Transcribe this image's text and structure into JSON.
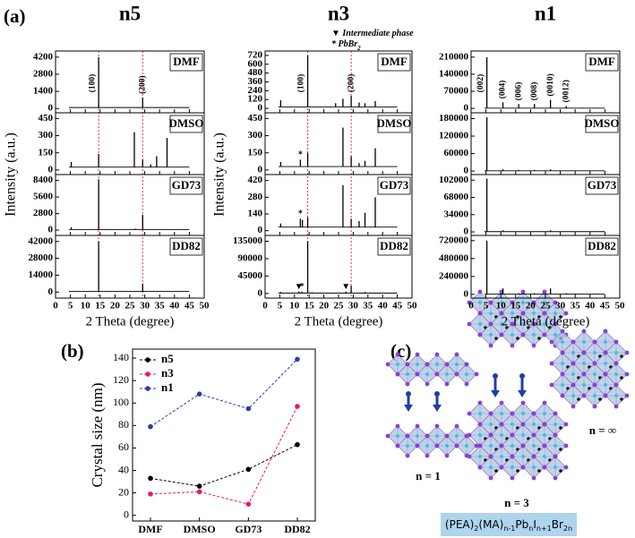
{
  "panel_labels": [
    "(a)",
    "(b)",
    "(c)"
  ],
  "chart_data": [
    {
      "type": "xrd",
      "title": "n5",
      "xlabel": "2 Theta (degree)",
      "ylabel": "Intensity (a.u.)",
      "xlim": [
        0,
        50
      ],
      "xticks": [
        0,
        5,
        10,
        15,
        20,
        25,
        30,
        35,
        40,
        45,
        50
      ],
      "ref_lines": [
        14.5,
        29.3
      ],
      "ref_color": "#e8313f",
      "color": "#000000",
      "panels": [
        {
          "label": "DMF",
          "ylim": [
            -350,
            4700
          ],
          "yticks": [
            0,
            1400,
            2800,
            4200
          ],
          "baseline": 80,
          "xrange": [
            4.5,
            45
          ],
          "peaks": {
            "x": [
              14.5,
              29.3
            ],
            "values": [
              4200,
              900
            ],
            "labels": [
              "(100)",
              "(200)"
            ]
          }
        },
        {
          "label": "DMSO",
          "ylim": [
            -40,
            500
          ],
          "yticks": [
            0,
            150,
            300,
            450
          ],
          "baseline": 25,
          "xrange": [
            4.5,
            45
          ],
          "peaks": {
            "x": [
              5.3,
              14.5,
              26.5,
              29.3,
              32,
              34,
              37.5
            ],
            "values": [
              70,
              140,
              330,
              90,
              50,
              120,
              280
            ]
          }
        },
        {
          "label": "GD73",
          "ylim": [
            -900,
            9400
          ],
          "yticks": [
            0,
            2800,
            5600,
            8400
          ],
          "baseline": 100,
          "xrange": [
            4.5,
            45
          ],
          "peaks": {
            "x": [
              5.3,
              14.5,
              27,
              29.3
            ],
            "values": [
              500,
              8600,
              250,
              2600
            ]
          }
        },
        {
          "label": "DD82",
          "ylim": [
            -5000,
            47000
          ],
          "yticks": [
            0,
            14000,
            28000,
            42000
          ],
          "baseline": 500,
          "xrange": [
            4.5,
            45
          ],
          "peaks": {
            "x": [
              14.5,
              29.3
            ],
            "values": [
              42000,
              7000
            ]
          }
        }
      ]
    },
    {
      "type": "xrd",
      "title": "n3",
      "xlabel": "2 Theta (degree)",
      "ylabel": "Intensity (a.u.)",
      "xlim": [
        0,
        50
      ],
      "xticks": [
        0,
        5,
        10,
        15,
        20,
        25,
        30,
        35,
        40,
        45,
        50
      ],
      "ref_lines": [
        14.5,
        29.3
      ],
      "ref_color": "#e8313f",
      "color": "#000000",
      "notes": [
        {
          "text": "▼ Intermediate phase"
        },
        {
          "text": "* PbBr",
          "sub": "2"
        }
      ],
      "panels": [
        {
          "label": "DMF",
          "ylim": [
            -60,
            780
          ],
          "yticks": [
            0,
            120,
            240,
            360,
            480,
            600,
            720
          ],
          "baseline": 20,
          "xrange": [
            4.5,
            45
          ],
          "peaks": {
            "x": [
              5.3,
              14.5,
              24,
              26.5,
              29.3,
              32,
              34,
              37.5
            ],
            "values": [
              110,
              720,
              70,
              130,
              170,
              80,
              70,
              100
            ],
            "labels": [
              null,
              "(100)",
              null,
              null,
              "(200)",
              null,
              null,
              null
            ]
          }
        },
        {
          "label": "DMSO",
          "ylim": [
            -40,
            500
          ],
          "yticks": [
            0,
            150,
            300,
            450
          ],
          "baseline": 30,
          "xrange": [
            4.5,
            45
          ],
          "peaks": {
            "x": [
              5.3,
              12,
              14.5,
              26.5,
              29.3,
              32,
              34,
              37.5
            ],
            "values": [
              70,
              90,
              150,
              370,
              120,
              60,
              80,
              190
            ],
            "markers": [
              null,
              "*",
              null,
              null,
              null,
              null,
              null,
              null
            ]
          }
        },
        {
          "label": "GD73",
          "ylim": [
            -40,
            470
          ],
          "yticks": [
            0,
            140,
            280,
            420
          ],
          "baseline": 30,
          "xrange": [
            4.5,
            45
          ],
          "peaks": {
            "x": [
              5.3,
              12,
              12.7,
              14.5,
              26.5,
              29.3,
              32,
              34,
              37.5
            ],
            "values": [
              60,
              100,
              90,
              110,
              380,
              100,
              80,
              150,
              280
            ],
            "markers": [
              null,
              "*",
              null,
              null,
              null,
              null,
              null,
              null,
              null
            ]
          }
        },
        {
          "label": "DD82",
          "ylim": [
            -12000,
            150000
          ],
          "yticks": [
            0,
            45000,
            90000,
            135000
          ],
          "baseline": 1000,
          "xrange": [
            4.5,
            45
          ],
          "peaks": {
            "x": [
              5.3,
              11.5,
              12.5,
              14.5,
              16,
              27.5,
              29.3,
              34
            ],
            "values": [
              4000,
              5000,
              5000,
              135000,
              3000,
              5000,
              20000,
              4000
            ],
            "markers": [
              null,
              "▼",
              "*",
              null,
              null,
              "▼",
              null,
              null
            ]
          }
        }
      ]
    },
    {
      "type": "xrd",
      "title": "n1",
      "xlim": [
        0,
        50
      ],
      "xticks": [
        0,
        5,
        10,
        15,
        20,
        25,
        30,
        35,
        40,
        45,
        50
      ],
      "xlabel": "2 Theta (degree)",
      "color": "#000000",
      "panels": [
        {
          "label": "DMF",
          "ylim": [
            -18000,
            235000
          ],
          "yticks": [
            0,
            70000,
            140000,
            210000
          ],
          "baseline": 1000,
          "xrange": [
            4.5,
            45
          ],
          "peaks": {
            "x": [
              5.3,
              10.7,
              16,
              21.3,
              26.7,
              32,
              37.5
            ],
            "values": [
              210000,
              25000,
              18000,
              18000,
              35000,
              10000,
              3000
            ],
            "labels": [
              "(002)",
              "(004)",
              "(006)",
              "(008)",
              "(0010)",
              "(0012)",
              null
            ]
          }
        },
        {
          "label": "DMSO",
          "ylim": [
            -12000,
            200000
          ],
          "yticks": [
            0,
            60000,
            120000,
            180000
          ],
          "baseline": 1000,
          "xrange": [
            4.5,
            45
          ],
          "peaks": {
            "x": [
              5.3,
              10.7,
              16,
              21.3,
              26.7
            ],
            "values": [
              185000,
              6000,
              4000,
              4000,
              6000
            ]
          }
        },
        {
          "label": "GD73",
          "ylim": [
            -7000,
            113000
          ],
          "yticks": [
            0,
            34000,
            68000,
            102000
          ],
          "baseline": 500,
          "xrange": [
            4.5,
            45
          ],
          "peaks": {
            "x": [
              5.3,
              10.7,
              26.7
            ],
            "values": [
              105000,
              3000,
              3000
            ]
          }
        },
        {
          "label": "DD82",
          "ylim": [
            -50000,
            790000
          ],
          "yticks": [
            0,
            240000,
            480000,
            720000
          ],
          "baseline": 3000,
          "xrange": [
            4.5,
            45
          ],
          "peaks": {
            "x": [
              5.3,
              10.7,
              16,
              21.3,
              26.7,
              32
            ],
            "values": [
              720000,
              80000,
              15000,
              15000,
              80000,
              15000
            ]
          }
        }
      ]
    },
    {
      "type": "line",
      "ylabel": "Crystal size (nm)",
      "categories": [
        "DMF",
        "DMSO",
        "GD73",
        "DD82"
      ],
      "ylim": [
        -5,
        148
      ],
      "yticks": [
        0,
        20,
        40,
        60,
        80,
        100,
        120,
        140
      ],
      "legend": "upper left",
      "linestyle": "dashed",
      "series": [
        {
          "name": "n5",
          "color": "#000000",
          "values": [
            33,
            26,
            41,
            63
          ]
        },
        {
          "name": "n3",
          "color": "#e5196b",
          "values": [
            19,
            21,
            10,
            97
          ]
        },
        {
          "name": "n1",
          "color": "#2d3cae",
          "values": [
            79,
            108,
            95,
            139
          ]
        }
      ]
    }
  ],
  "diagram": {
    "labels": [
      "n = 1",
      "n = 3",
      "n = ∞"
    ],
    "formula": [
      [
        "(PEA)",
        "2"
      ],
      [
        "(MA)",
        "n-1"
      ],
      [
        "Pb",
        "n"
      ],
      [
        "I",
        "n+1"
      ],
      [
        "Br",
        "2n"
      ]
    ]
  }
}
